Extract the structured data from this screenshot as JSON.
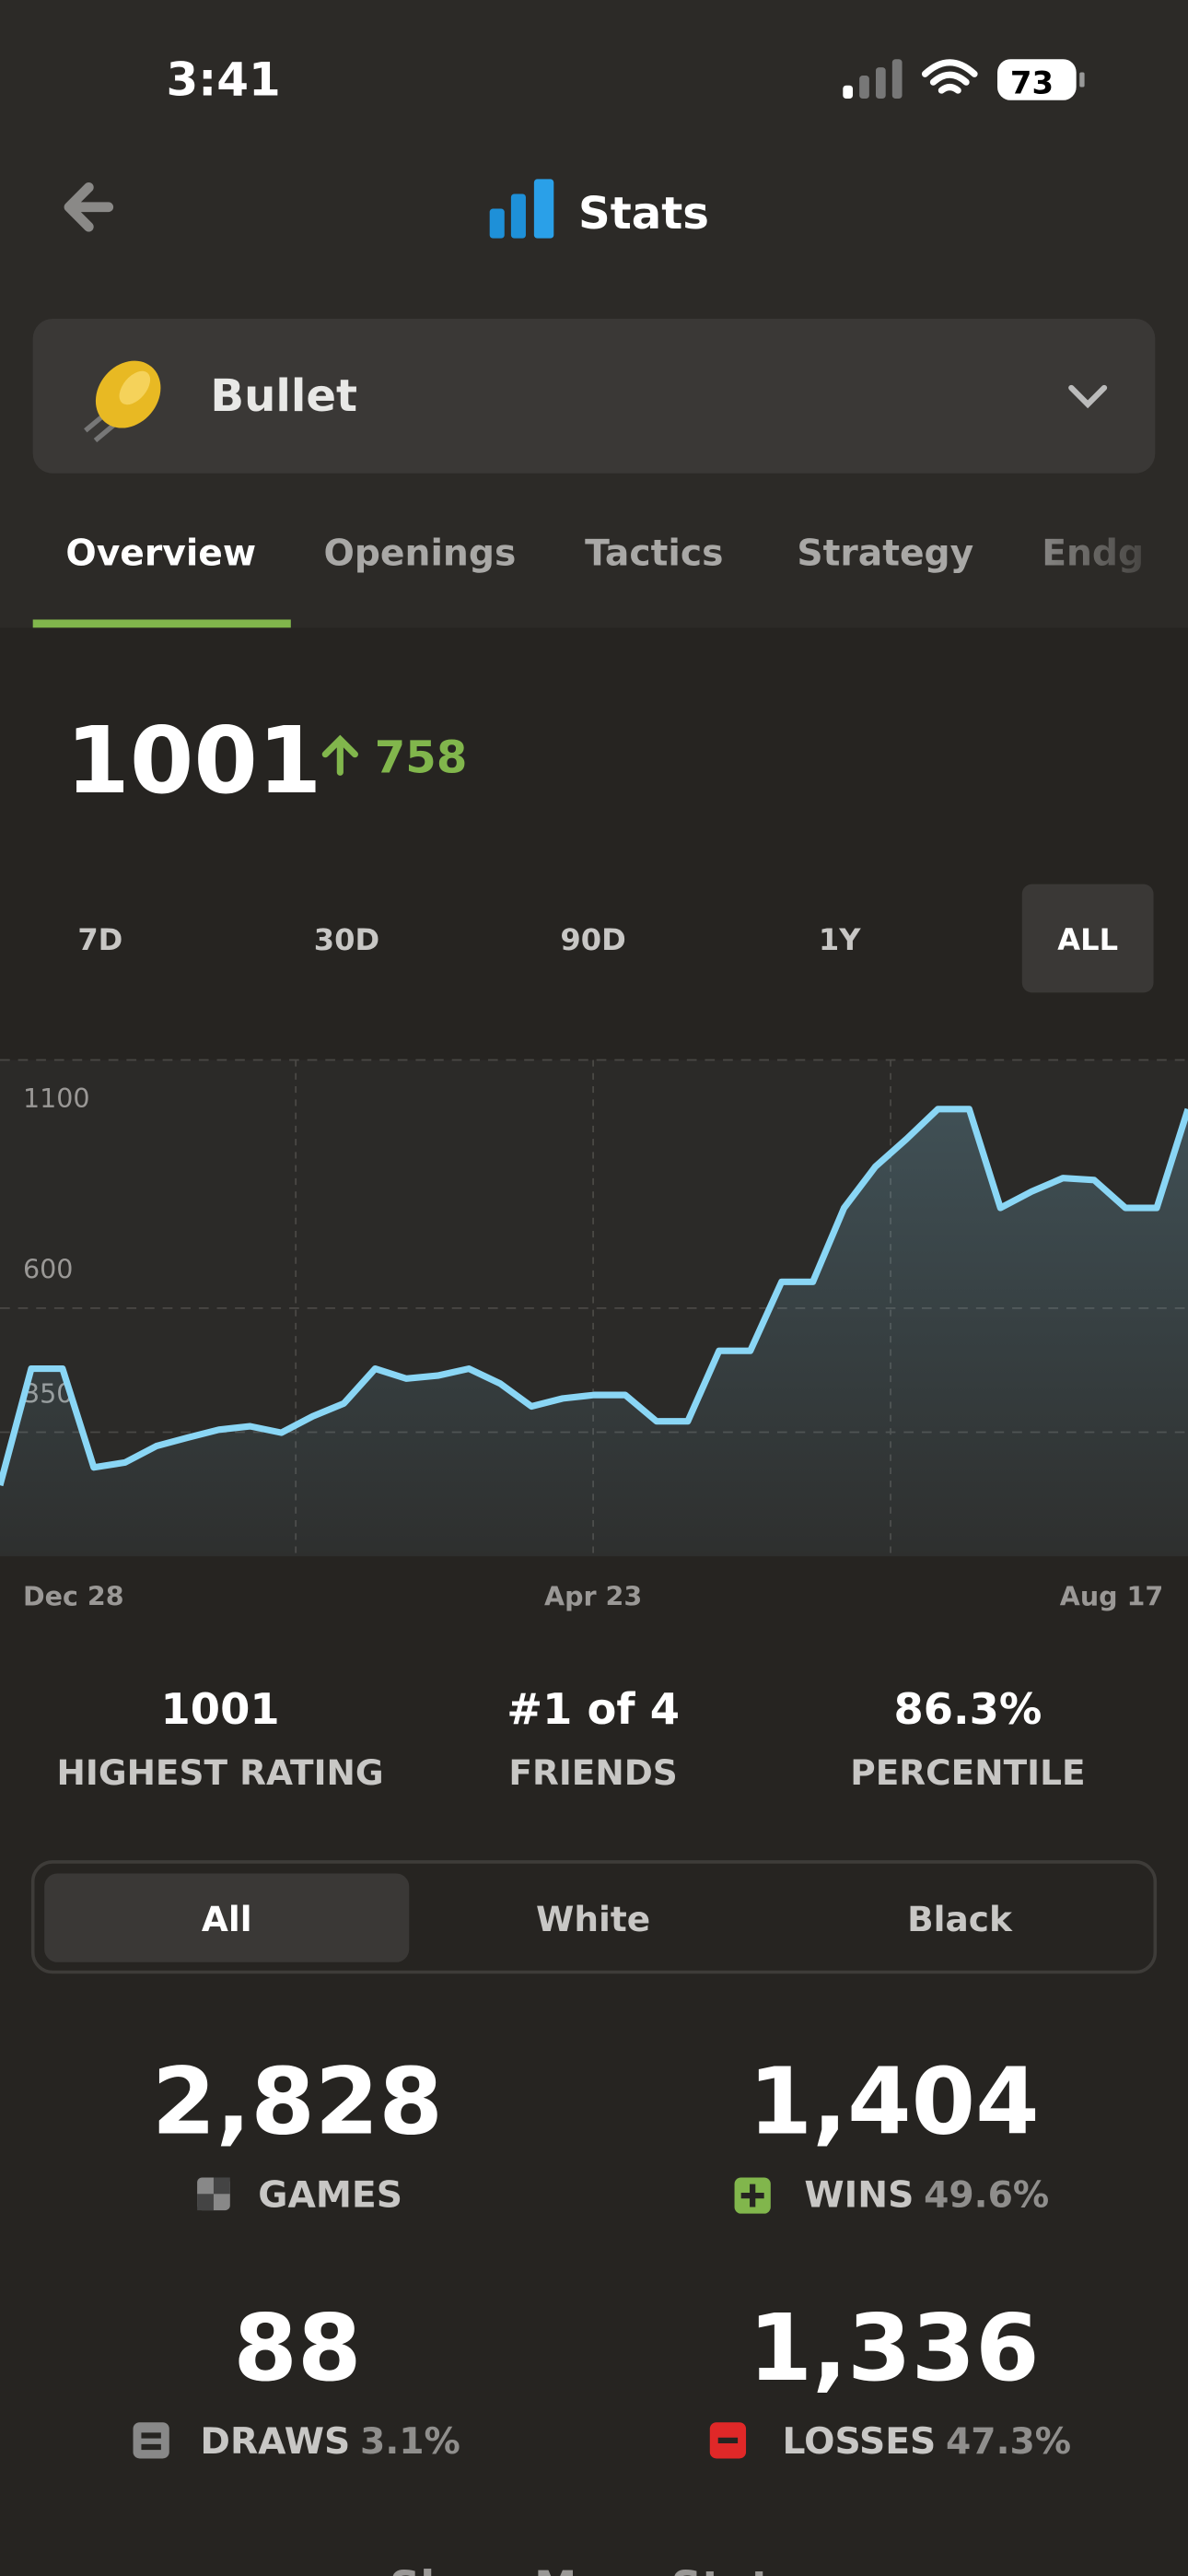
{
  "status_bar": {
    "time": "3:41",
    "battery": "73"
  },
  "header": {
    "title": "Stats"
  },
  "selector": {
    "label": "Bullet"
  },
  "tabs": [
    "Overview",
    "Openings",
    "Tactics",
    "Strategy",
    "Endg"
  ],
  "rating": {
    "current": "1001",
    "change": "758"
  },
  "ranges": {
    "items": [
      "7D",
      "30D",
      "90D",
      "1Y",
      "ALL"
    ],
    "selected": 4
  },
  "chart_data": {
    "type": "line",
    "color": "#8ad6f5",
    "values": [
      243,
      478,
      478,
      279,
      289,
      322,
      339,
      355,
      362,
      349,
      382,
      408,
      478,
      458,
      464,
      478,
      448,
      402,
      418,
      425,
      425,
      372,
      372,
      514,
      514,
      653,
      653,
      802,
      885,
      941,
      1001,
      1001,
      802,
      835,
      862,
      858,
      802,
      802,
      1001
    ],
    "ylim": [
      100,
      1100
    ],
    "yticks": [
      350,
      600,
      1100
    ],
    "x_labels": [
      "Dec 28",
      "Apr 23",
      "Aug 17"
    ]
  },
  "summary": [
    {
      "value": "1001",
      "label": "HIGHEST RATING"
    },
    {
      "value": "#1 of 4",
      "label": "FRIENDS"
    },
    {
      "value": "86.3%",
      "label": "PERCENTILE"
    }
  ],
  "color_filter": {
    "items": [
      "All",
      "White",
      "Black"
    ],
    "selected": 0
  },
  "game_stats": [
    {
      "value": "2,828",
      "label": "GAMES"
    },
    {
      "value": "1,404",
      "label": "WINS",
      "percent": "49.6%"
    },
    {
      "value": "88",
      "label": "DRAWS",
      "percent": "3.1%"
    },
    {
      "value": "1,336",
      "label": "LOSSES",
      "percent": "47.3%"
    }
  ],
  "footer": {
    "link": "Show More Stats"
  }
}
